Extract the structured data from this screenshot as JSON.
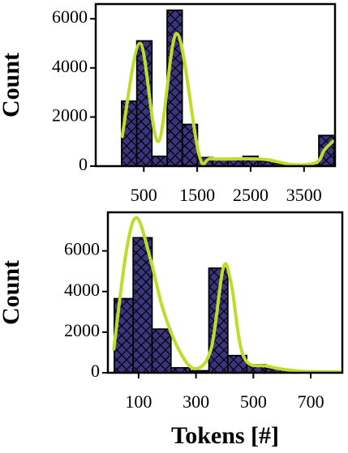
{
  "chart_data": [
    {
      "type": "histogram",
      "ylabel": "Count",
      "bins": [
        85,
        369,
        653,
        937,
        1221,
        1505,
        1789,
        2073,
        2357,
        2641,
        2925,
        3209,
        3493,
        3777,
        4061
      ],
      "values": [
        2650,
        5100,
        400,
        6350,
        1700,
        350,
        300,
        300,
        400,
        200,
        100,
        50,
        50,
        1250
      ],
      "color": "#3b3580",
      "kde": {
        "x": [
          91,
          430,
          770,
          1120,
          1530,
          1760,
          2400,
          2820,
          3290,
          3730,
          3880,
          4060
        ],
        "values": [
          1150,
          5000,
          1000,
          5400,
          500,
          300,
          300,
          260,
          60,
          150,
          650,
          1050
        ],
        "color": "#bedc2a"
      },
      "xlim": [
        -400,
        4080
      ],
      "ylim": [
        0,
        6600
      ],
      "xticks": [
        500,
        1500,
        2500,
        3500
      ],
      "yticks": [
        0,
        2000,
        4000,
        6000
      ]
    },
    {
      "type": "histogram",
      "ylabel": "Count",
      "xlabel": "Tokens [#]",
      "bins": [
        15,
        81,
        147,
        213,
        279,
        345,
        411,
        477,
        543,
        609,
        675,
        741,
        807
      ],
      "values": [
        3650,
        6650,
        2150,
        250,
        100,
        5150,
        850,
        400,
        200,
        100,
        50,
        30
      ],
      "color": "#3b3580",
      "kde": {
        "x": [
          13,
          57,
          94,
          142,
          184,
          241,
          297,
          353,
          395,
          423,
          466,
          550,
          662,
          803
        ],
        "values": [
          1100,
          5960,
          7630,
          5560,
          3180,
          1110,
          200,
          1190,
          5170,
          4370,
          800,
          320,
          80,
          40
        ],
        "color": "#bedc2a"
      },
      "xlim": [
        -7,
        810
      ],
      "ylim": [
        0,
        7900
      ],
      "xticks": [
        100,
        300,
        500,
        700
      ],
      "yticks": [
        0,
        2000,
        4000,
        6000
      ]
    }
  ]
}
